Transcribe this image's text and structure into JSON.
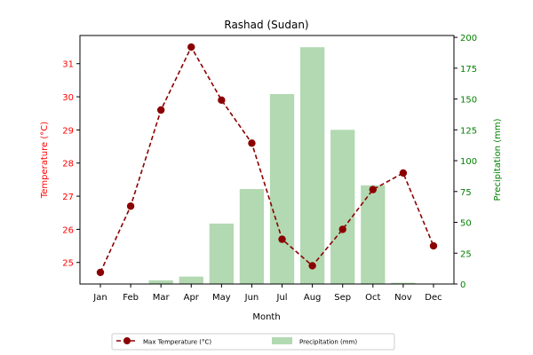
{
  "chart_data": {
    "type": "bar+line",
    "title": "Rashad (Sudan)",
    "xlabel": "Month",
    "categories": [
      "Jan",
      "Feb",
      "Mar",
      "Apr",
      "May",
      "Jun",
      "Jul",
      "Aug",
      "Sep",
      "Oct",
      "Nov",
      "Dec"
    ],
    "y_left": {
      "label": "Temperature (°C)",
      "color": "#ff0000",
      "range": [
        24.35,
        31.85
      ],
      "ticks": [
        25,
        26,
        27,
        28,
        29,
        30,
        31
      ]
    },
    "y_right": {
      "label": "Precipitation (mm)",
      "color": "#008000",
      "range": [
        0,
        201.5
      ],
      "ticks": [
        0,
        25,
        50,
        75,
        100,
        125,
        150,
        175,
        200
      ]
    },
    "series": [
      {
        "name": "Max Temperature (°C)",
        "type": "line",
        "axis": "left",
        "color": "#8b0000",
        "values": [
          24.7,
          26.7,
          29.6,
          31.5,
          29.9,
          28.6,
          25.7,
          24.9,
          26.0,
          27.2,
          27.7,
          25.5
        ]
      },
      {
        "name": "Precipitation (mm)",
        "type": "bar",
        "axis": "right",
        "color": "#b2d9b2",
        "values": [
          0,
          0,
          3,
          6,
          49,
          77,
          154,
          192,
          125,
          80,
          1,
          0
        ]
      }
    ],
    "legend_position": "bottom-center"
  }
}
